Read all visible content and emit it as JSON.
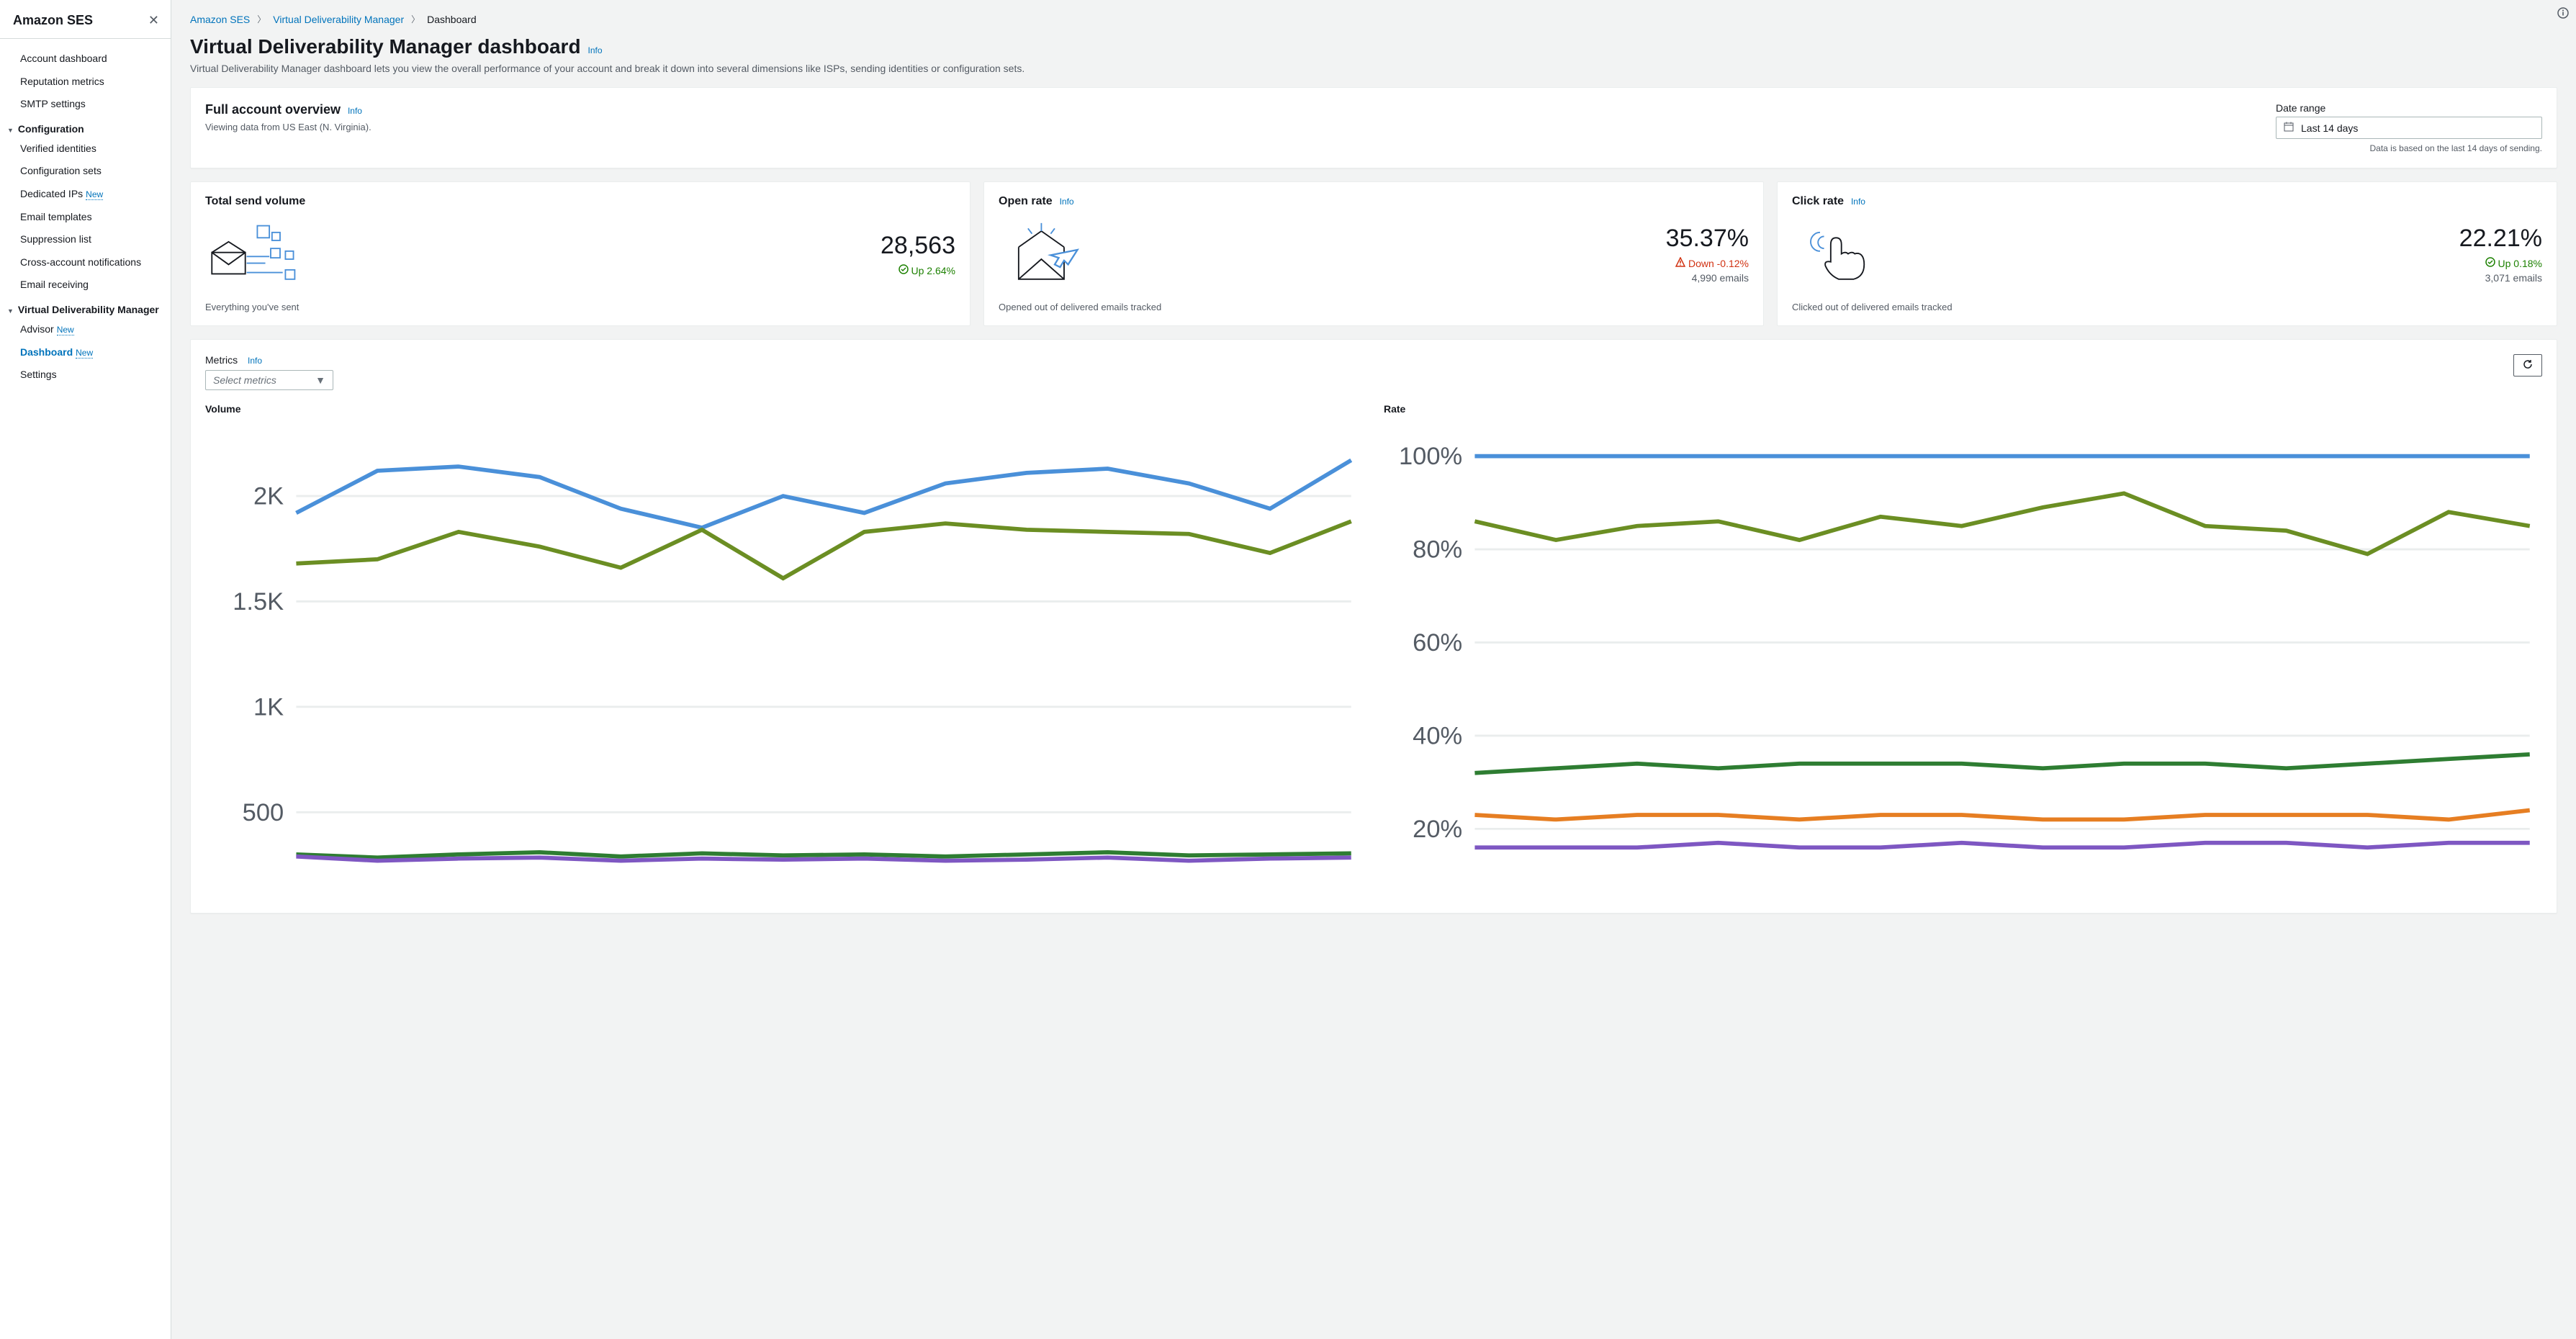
{
  "sidebar": {
    "title": "Amazon SES",
    "top_items": [
      {
        "label": "Account dashboard"
      },
      {
        "label": "Reputation metrics"
      },
      {
        "label": "SMTP settings"
      }
    ],
    "sections": [
      {
        "label": "Configuration",
        "items": [
          {
            "label": "Verified identities"
          },
          {
            "label": "Configuration sets"
          },
          {
            "label": "Dedicated IPs",
            "new": true
          },
          {
            "label": "Email templates"
          },
          {
            "label": "Suppression list"
          },
          {
            "label": "Cross-account notifications"
          },
          {
            "label": "Email receiving"
          }
        ]
      },
      {
        "label": "Virtual Deliverability Manager",
        "items": [
          {
            "label": "Advisor",
            "new": true
          },
          {
            "label": "Dashboard",
            "new": true,
            "active": true
          },
          {
            "label": "Settings"
          }
        ]
      }
    ],
    "new_badge": "New"
  },
  "breadcrumb": {
    "a": "Amazon SES",
    "b": "Virtual Deliverability Manager",
    "c": "Dashboard"
  },
  "page": {
    "title": "Virtual Deliverability Manager dashboard",
    "info": "Info",
    "subtitle": "Virtual Deliverability Manager dashboard lets you view the overall performance of your account and break it down into several dimensions like ISPs, sending identities or configuration sets."
  },
  "overview": {
    "title": "Full account overview",
    "info": "Info",
    "subtitle": "Viewing data from US East (N. Virginia).",
    "date_range_label": "Date range",
    "date_range_value": "Last 14 days",
    "footnote": "Data is based on the last 14 days of sending."
  },
  "cards": {
    "send": {
      "title": "Total send volume",
      "value": "28,563",
      "change": "Up 2.64%",
      "change_dir": "up",
      "foot": "Everything you've sent",
      "icon_stroke": "#16191f",
      "icon_accent": "#4a90d9"
    },
    "open": {
      "title": "Open rate",
      "info": "Info",
      "value": "35.37%",
      "change": "Down -0.12%",
      "change_dir": "down",
      "emails": "4,990 emails",
      "foot": "Opened out of delivered emails tracked",
      "icon_stroke": "#16191f",
      "icon_accent": "#4a90d9"
    },
    "click": {
      "title": "Click rate",
      "info": "Info",
      "value": "22.21%",
      "change": "Up 0.18%",
      "change_dir": "up",
      "emails": "3,071 emails",
      "foot": "Clicked out of delivered emails tracked",
      "icon_stroke": "#16191f",
      "icon_accent": "#4a90d9"
    }
  },
  "metrics": {
    "label": "Metrics",
    "info": "Info",
    "select_placeholder": "Select metrics",
    "volume": {
      "title": "Volume",
      "yticks": [
        "2K",
        "1.5K",
        "1K",
        "500"
      ],
      "ytick_values": [
        2000,
        1500,
        1000,
        500
      ],
      "ymax": 2300,
      "ymin": 200,
      "series": [
        {
          "color": "#4a90d9",
          "width": 2,
          "values": [
            1920,
            2120,
            2140,
            2090,
            1940,
            1850,
            2000,
            1920,
            2060,
            2110,
            2130,
            2060,
            1940,
            2170
          ]
        },
        {
          "color": "#6b8e23",
          "width": 2,
          "values": [
            1680,
            1700,
            1830,
            1760,
            1660,
            1840,
            1610,
            1830,
            1870,
            1840,
            1830,
            1820,
            1730,
            1880
          ]
        },
        {
          "color": "#2e7d32",
          "width": 2,
          "values": [
            300,
            285,
            300,
            310,
            290,
            305,
            295,
            300,
            290,
            300,
            310,
            295,
            300,
            305
          ]
        },
        {
          "color": "#7e57c2",
          "width": 2,
          "values": [
            290,
            270,
            280,
            285,
            270,
            280,
            275,
            280,
            270,
            275,
            285,
            270,
            280,
            285
          ]
        }
      ]
    },
    "rate": {
      "title": "Rate",
      "yticks": [
        "100%",
        "80%",
        "60%",
        "40%",
        "20%"
      ],
      "ytick_values": [
        100,
        80,
        60,
        40,
        20
      ],
      "ymax": 105,
      "ymin": 10,
      "series": [
        {
          "color": "#4a90d9",
          "width": 2,
          "values": [
            100,
            100,
            100,
            100,
            100,
            100,
            100,
            100,
            100,
            100,
            100,
            100,
            100,
            100
          ]
        },
        {
          "color": "#6b8e23",
          "width": 2,
          "values": [
            86,
            82,
            85,
            86,
            82,
            87,
            85,
            89,
            92,
            85,
            84,
            79,
            88,
            85
          ]
        },
        {
          "color": "#2e7d32",
          "width": 2,
          "values": [
            32,
            33,
            34,
            33,
            34,
            34,
            34,
            33,
            34,
            34,
            33,
            34,
            35,
            36
          ]
        },
        {
          "color": "#e67e22",
          "width": 2,
          "values": [
            23,
            22,
            23,
            23,
            22,
            23,
            23,
            22,
            22,
            23,
            23,
            23,
            22,
            24
          ]
        },
        {
          "color": "#7e57c2",
          "width": 2,
          "values": [
            16,
            16,
            16,
            17,
            16,
            16,
            17,
            16,
            16,
            17,
            17,
            16,
            17,
            17
          ]
        }
      ]
    }
  },
  "colors": {
    "link": "#0073bb",
    "text_muted": "#545b64",
    "success": "#1d8102",
    "error": "#d13212",
    "border": "#aab7b8"
  }
}
